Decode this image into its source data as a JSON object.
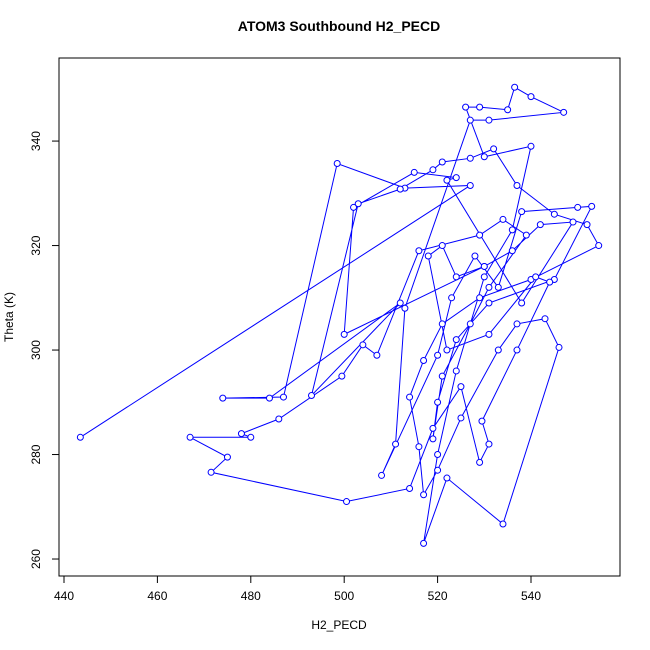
{
  "chart_data": {
    "type": "line",
    "markers": true,
    "title": "ATOM3 Southbound H2_PECD",
    "x_label": "H2_PECD",
    "y_label": "Theta (K)",
    "color": "#0000ff",
    "xlim": [
      438.93,
      559.06
    ],
    "ylim": [
      256.75,
      355.9
    ],
    "xticks": [
      440,
      460,
      480,
      500,
      520,
      540
    ],
    "yticks": [
      260,
      280,
      300,
      320,
      340
    ],
    "x": [
      443.5,
      527,
      513,
      498.5,
      487,
      474,
      484,
      512,
      493,
      503,
      512,
      519,
      521,
      527,
      532,
      537,
      545,
      552,
      554.5,
      540,
      529,
      521,
      517,
      514,
      516,
      517,
      520,
      525,
      533,
      537,
      543,
      546,
      534,
      522,
      517,
      520,
      524,
      530,
      536,
      540,
      530,
      526,
      529,
      535,
      536.5,
      540,
      547,
      531,
      527,
      513,
      511,
      508,
      520,
      523,
      528,
      533,
      538,
      550,
      553,
      545,
      531,
      524,
      520,
      519,
      521,
      527,
      531,
      539,
      534,
      529,
      516,
      507,
      504,
      499.5,
      486,
      478,
      480,
      467,
      475,
      471.5,
      500.5,
      514,
      519,
      525,
      529,
      531,
      529.5,
      537,
      544,
      541,
      531,
      522,
      518,
      521,
      524,
      530,
      536,
      542,
      549,
      538,
      522,
      524,
      515,
      502,
      500,
      530
    ],
    "values": [
      283.3,
      331.5,
      331,
      335.7,
      291,
      290.8,
      290.8,
      309,
      291.3,
      328,
      330.8,
      334.5,
      336,
      336.7,
      338.5,
      331.5,
      326,
      324,
      320,
      313.5,
      310,
      305,
      298,
      291,
      281.5,
      272.3,
      277,
      287,
      300,
      305,
      306,
      300.5,
      266.7,
      275.5,
      263,
      280,
      296,
      314,
      323,
      339,
      337,
      346.5,
      346.5,
      346,
      350.3,
      348.5,
      345.5,
      344,
      344,
      308,
      282,
      276,
      299,
      310,
      318,
      312,
      326.5,
      327.3,
      327.5,
      313.5,
      309,
      302,
      290,
      283,
      295,
      305,
      312,
      322,
      325,
      322,
      319,
      299,
      301,
      295,
      286.8,
      284,
      283.3,
      283.3,
      279.5,
      276.6,
      271,
      273.5,
      285,
      293,
      278.5,
      282,
      286.4,
      300,
      313,
      314,
      303,
      300,
      318,
      320,
      314,
      316,
      319,
      324,
      324.5,
      309,
      332.5,
      333,
      334,
      327.3,
      303,
      316
    ]
  }
}
